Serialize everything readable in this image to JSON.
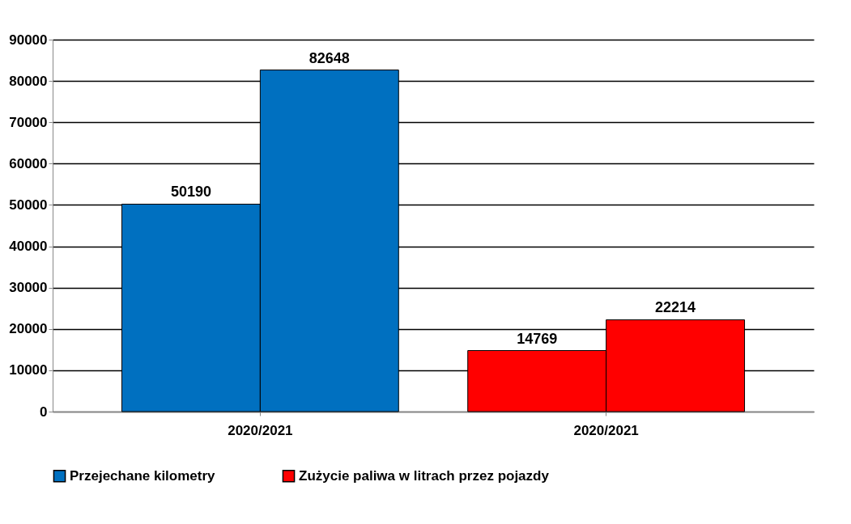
{
  "chart_data": {
    "type": "bar",
    "categories": [
      "2020/2021",
      "2020/2021"
    ],
    "series": [
      {
        "name": "Przejechane kilometry",
        "color": "#0070c0",
        "values": [
          50190,
          null
        ]
      },
      {
        "color": "#0070c0",
        "values": [
          82648,
          null
        ]
      },
      {
        "name": "Zużycie paliwa w litrach przez pojazdy",
        "color": "#ff0000",
        "values": [
          null,
          14769
        ]
      },
      {
        "color": "#ff0000",
        "values": [
          null,
          22214
        ]
      }
    ],
    "ylim": [
      0,
      90000
    ],
    "yticks": [
      0,
      10000,
      20000,
      30000,
      40000,
      50000,
      60000,
      70000,
      80000,
      90000
    ],
    "grid": "y",
    "data_labels": true,
    "legend": "bottom"
  }
}
